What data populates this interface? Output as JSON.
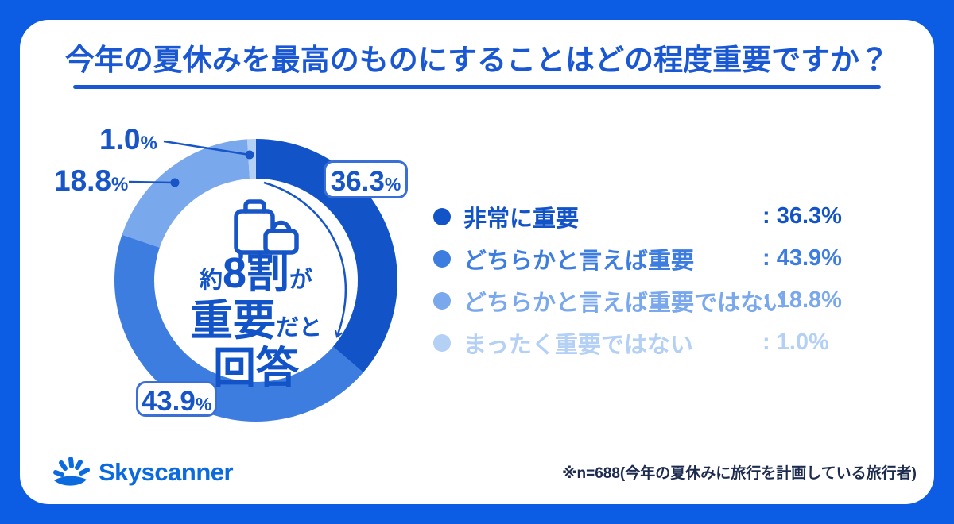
{
  "title": "今年の夏休みを最高のものにすることはどの程度重要ですか？",
  "chart_data": {
    "type": "pie",
    "donut": true,
    "start_angle": "top",
    "direction": "clockwise",
    "title": "今年の夏休みを最高のものにすることはどの程度重要ですか？",
    "categories": [
      "非常に重要",
      "どちらかと言えば重要",
      "どちらかと言えば重要ではない",
      "まったく重要ではない"
    ],
    "values": [
      36.3,
      43.9,
      18.8,
      1.0
    ],
    "display": [
      "36.3",
      "43.9",
      "18.8",
      "1.0"
    ],
    "unit": "%",
    "colors": [
      "#1254c8",
      "#3e7de0",
      "#7aa8ec",
      "#b4d0f5"
    ],
    "center_annotation": "約8割が重要だと回答",
    "legend_position": "right",
    "sample_note": "※n=688(今年の夏休みに旅行を計画している旅行者)"
  },
  "center": {
    "l1_small1": "約",
    "l1_big": "8割",
    "l1_small2": "が",
    "l2_big": "重要",
    "l2_small": "だと",
    "l3_big": "回答"
  },
  "legend": {
    "items": [
      {
        "label": "非常に重要",
        "value": ": 36.3%"
      },
      {
        "label": "どちらかと言えば重要",
        "value": ": 43.9%"
      },
      {
        "label": "どちらかと言えば重要ではない",
        "value": ": 18.8%"
      },
      {
        "label": "まったく重要ではない",
        "value": ": 1.0%"
      }
    ]
  },
  "footer": {
    "brand": "Skyscanner",
    "note": "※n=688(今年の夏休みに旅行を計画している旅行者)"
  }
}
